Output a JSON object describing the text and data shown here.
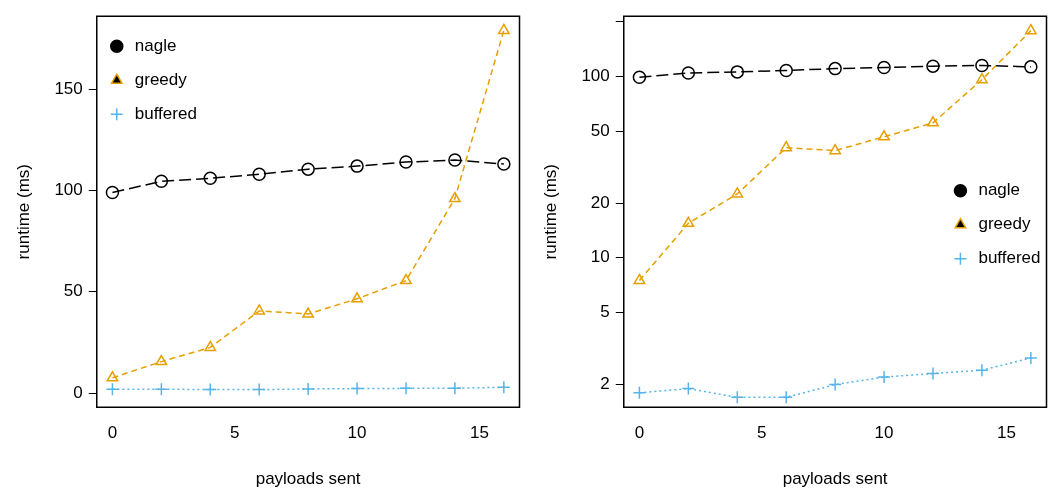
{
  "chart_data": [
    {
      "type": "line",
      "xlabel": "payloads sent",
      "ylabel": "runtime (ms)",
      "x": [
        0,
        2,
        4,
        6,
        8,
        10,
        12,
        14,
        16
      ],
      "xlim": [
        -0.64,
        16.64
      ],
      "xticks": [
        0,
        5,
        10,
        15
      ],
      "ylim": [
        -7,
        186
      ],
      "yticks": [
        0,
        50,
        100,
        150
      ],
      "legend": "top left",
      "series": [
        {
          "name": "nagle",
          "color": "#000000",
          "marker": "circle",
          "line_style": "longdash",
          "values": [
            99,
            104.5,
            106,
            108,
            110.5,
            112,
            114,
            115,
            113
          ]
        },
        {
          "name": "greedy",
          "color": "#e69f00",
          "marker": "triangle",
          "line_style": "dashed",
          "values": [
            7.5,
            15.5,
            22.5,
            40.5,
            39,
            46.5,
            55.5,
            96,
            179
          ]
        },
        {
          "name": "buffered",
          "color": "#56b4e9",
          "marker": "cross",
          "line_style": "dotted",
          "values": [
            1.8,
            1.9,
            1.7,
            1.7,
            2.0,
            2.2,
            2.3,
            2.4,
            2.8
          ]
        }
      ]
    },
    {
      "type": "line",
      "xlabel": "payloads sent",
      "ylabel": "runtime (ms)",
      "x": [
        0,
        2,
        4,
        6,
        8,
        10,
        12,
        14,
        16
      ],
      "xlim": [
        -0.64,
        16.64
      ],
      "xticks": [
        0,
        5,
        10,
        15
      ],
      "log": "y",
      "ylim": [
        1.5,
        215
      ],
      "yticks": [
        2,
        5,
        10,
        20,
        50,
        100,
        {
          "value": 200,
          "label": null
        }
      ],
      "legend": "right",
      "series": [
        {
          "name": "nagle",
          "color": "#000000",
          "marker": "circle",
          "line_style": "longdash",
          "values": [
            99,
            104.5,
            106,
            108,
            110.5,
            112,
            114,
            115,
            113
          ]
        },
        {
          "name": "greedy",
          "color": "#e69f00",
          "marker": "triangle",
          "line_style": "dashed",
          "values": [
            7.5,
            15.5,
            22.5,
            40.5,
            39,
            46.5,
            55.5,
            96,
            179
          ]
        },
        {
          "name": "buffered",
          "color": "#56b4e9",
          "marker": "cross",
          "line_style": "dotted",
          "values": [
            1.8,
            1.9,
            1.7,
            1.7,
            2.0,
            2.2,
            2.3,
            2.4,
            2.8
          ]
        }
      ]
    }
  ]
}
